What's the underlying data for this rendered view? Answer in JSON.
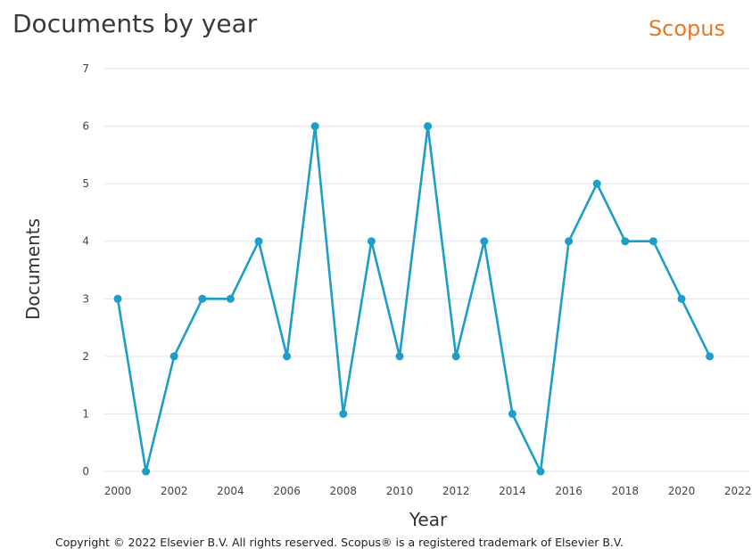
{
  "header": {
    "title": "Documents by year",
    "brand": "Scopus"
  },
  "footer": {
    "copyright": "Copyright © 2022 Elsevier B.V. All rights reserved. Scopus® is a registered trademark of Elsevier B.V."
  },
  "colors": {
    "series": "#1c9ec9",
    "grid": "#dfe3ec",
    "brand": "#e87722"
  },
  "chart_data": {
    "type": "line",
    "title": "Documents by year",
    "xlabel": "Year",
    "ylabel": "Documents",
    "xlim": [
      2000,
      2022
    ],
    "ylim": [
      0,
      7
    ],
    "x_ticks": [
      "2000",
      "2002",
      "2004",
      "2006",
      "2008",
      "2010",
      "2012",
      "2014",
      "2016",
      "2018",
      "2020",
      "2022"
    ],
    "y_ticks": [
      "0",
      "1",
      "2",
      "3",
      "4",
      "5",
      "6",
      "7"
    ],
    "grid": "horizontal",
    "series": [
      {
        "x": [
          2000,
          2001,
          2002,
          2003,
          2004,
          2005,
          2006,
          2007,
          2008,
          2009,
          2010,
          2011,
          2012,
          2013,
          2014,
          2015,
          2016,
          2017,
          2018,
          2019,
          2020,
          2021
        ],
        "values": [
          3,
          0,
          2,
          3,
          3,
          4,
          2,
          6,
          1,
          4,
          2,
          6,
          2,
          4,
          1,
          0,
          4,
          5,
          4,
          4,
          3,
          2
        ]
      }
    ]
  }
}
